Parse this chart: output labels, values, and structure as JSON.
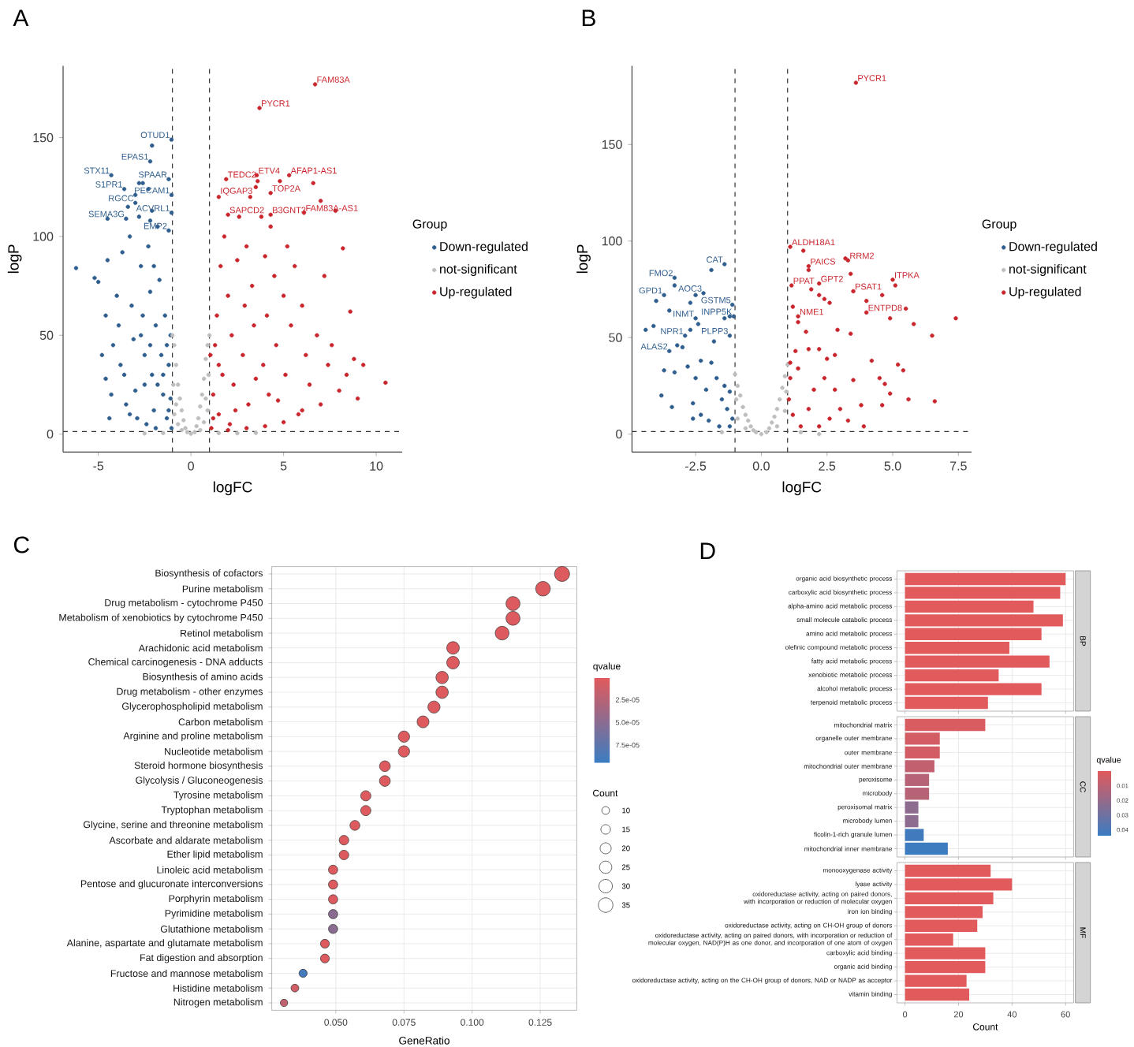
{
  "chart_data": [
    {
      "type": "scatter",
      "title": "A",
      "xlabel": "logFC",
      "ylabel": "logP",
      "legend_title": "Group",
      "legend": "right",
      "xlim": [
        -6.9,
        11.4
      ],
      "ylim": [
        -9.1,
        186.4
      ],
      "xticks": [
        -5,
        0,
        5,
        10
      ],
      "yticks": [
        0,
        50,
        100,
        150
      ],
      "ref_lines": [
        {
          "axis": "x",
          "value": -1,
          "line_style": "dashed"
        },
        {
          "axis": "x",
          "value": 1,
          "line_style": "dashed"
        },
        {
          "axis": "y",
          "value": 1.3,
          "line_style": "dashed"
        }
      ],
      "annotations": [
        {
          "text": "FAM83A",
          "x": 6.7,
          "y": 177
        },
        {
          "text": "PYCR1",
          "x": 3.7,
          "y": 165
        },
        {
          "text": "OTUD1",
          "x": -1.05,
          "y": 149
        },
        {
          "text": "EPAS1",
          "x": -2.2,
          "y": 138
        },
        {
          "text": "STX11",
          "x": -4.3,
          "y": 131
        },
        {
          "text": "SPAAR",
          "x": -1.2,
          "y": 129
        },
        {
          "text": "S1PR1",
          "x": -3.6,
          "y": 124
        },
        {
          "text": "PECAM1",
          "x": -1.05,
          "y": 121
        },
        {
          "text": "RGCC",
          "x": -3.0,
          "y": 117
        },
        {
          "text": "ACVRL1",
          "x": -1.05,
          "y": 112
        },
        {
          "text": "SEMA3G",
          "x": -3.5,
          "y": 109
        },
        {
          "text": "EMP2",
          "x": -1.2,
          "y": 103
        },
        {
          "text": "TEDC2",
          "x": 1.9,
          "y": 129
        },
        {
          "text": "ETV4",
          "x": 3.55,
          "y": 131
        },
        {
          "text": "AFAP1-AS1",
          "x": 5.3,
          "y": 131
        },
        {
          "text": "IQGAP3",
          "x": 1.5,
          "y": 120
        },
        {
          "text": "TOP2A",
          "x": 4.3,
          "y": 122
        },
        {
          "text": "SAPCD2",
          "x": 2.0,
          "y": 111
        },
        {
          "text": "B3GNT3",
          "x": 4.3,
          "y": 111
        },
        {
          "text": "FAM83A-AS1",
          "x": 6.1,
          "y": 112
        }
      ],
      "series": [
        {
          "name": "Down-regulated",
          "color": "#2F5E8E",
          "x": [
            -6.2,
            -5.2,
            -5.0,
            -4.5,
            -4.6,
            -4.8,
            -4.6,
            -4.4,
            -4.2,
            -4.0,
            -3.9,
            -3.7,
            -3.6,
            -3.5,
            -3.3,
            -3.2,
            -3.1,
            -3.0,
            -2.9,
            -2.8,
            -2.7,
            -2.6,
            -2.5,
            -2.4,
            -2.3,
            -2.2,
            -2.1,
            -2.0,
            -2.0,
            -1.9,
            -1.8,
            -1.7,
            -1.6,
            -1.5,
            -1.4,
            -1.3,
            -1.2,
            -1.1,
            -1.05,
            -1.1,
            -2.6,
            -2.3,
            -2.1,
            -2.8,
            -3.0,
            -3.4,
            -4.5,
            -2.1,
            -2.2,
            -1.5,
            -1.8,
            -2.5,
            -3.3,
            -3.8,
            -2.7,
            -1.3,
            -1.2,
            -1.9,
            -2.2,
            -4.3,
            -1.05,
            -2.2,
            -4.3,
            -1.2,
            -3.6,
            -1.05,
            -3.0,
            -1.05,
            -3.5,
            -1.2
          ],
          "values": [
            84,
            79,
            77,
            88,
            60,
            40,
            28,
            8,
            45,
            70,
            55,
            92,
            30,
            15,
            100,
            65,
            48,
            22,
            8,
            110,
            85,
            60,
            40,
            5,
            95,
            72,
            30,
            85,
            12,
            55,
            105,
            78,
            40,
            20,
            60,
            8,
            35,
            50,
            3,
            18,
            127,
            124,
            146,
            127,
            121,
            115,
            109,
            113,
            108,
            30,
            25,
            25,
            10,
            35,
            50,
            45,
            12,
            3,
            45,
            20,
            149,
            138,
            131,
            129,
            124,
            121,
            117,
            112,
            109,
            103
          ]
        },
        {
          "name": "not-significant",
          "color": "#BEBEBE",
          "x": [
            -1.0,
            -0.9,
            -0.8,
            -0.7,
            -0.6,
            -0.5,
            -0.4,
            -0.3,
            -0.2,
            0,
            0.2,
            0.3,
            0.4,
            0.5,
            0.6,
            0.7,
            0.8,
            0.9,
            1.0,
            -0.9,
            -0.7,
            -0.5,
            0.5,
            0.7,
            0.9,
            -1.5,
            -2.5,
            1.5,
            2.5,
            3.5,
            -0.95,
            0.95,
            -0.8,
            0.8
          ],
          "values": [
            50,
            45,
            35,
            25,
            18,
            12,
            7,
            3,
            1,
            0.2,
            1,
            4,
            8,
            14,
            20,
            28,
            38,
            45,
            50,
            10,
            5,
            2,
            2,
            6,
            12,
            0.5,
            0.3,
            0.5,
            0.4,
            0.6,
            25,
            30,
            15,
            18
          ]
        },
        {
          "name": "Up-regulated",
          "color": "#C9252C",
          "x": [
            1.1,
            1.2,
            1.3,
            1.4,
            1.5,
            1.6,
            1.7,
            1.8,
            2.0,
            2.1,
            2.2,
            2.3,
            2.5,
            2.6,
            2.8,
            2.9,
            3.0,
            3.1,
            3.2,
            3.3,
            3.4,
            3.5,
            3.6,
            3.7,
            3.8,
            3.9,
            4.0,
            4.1,
            4.2,
            4.3,
            4.5,
            4.6,
            4.8,
            5.0,
            5.1,
            5.2,
            5.4,
            5.6,
            5.8,
            6.0,
            6.2,
            6.4,
            6.6,
            6.7,
            6.8,
            7.0,
            7.2,
            7.4,
            7.6,
            7.8,
            8.0,
            8.2,
            8.4,
            8.6,
            8.8,
            9.0,
            9.3,
            10.5,
            1.05,
            1.2,
            2.0,
            3.0,
            4.0,
            5.0,
            6.0,
            7.0,
            2.4,
            1.5,
            3.5,
            4.7,
            1.9,
            3.55,
            5.3,
            1.5,
            4.3,
            2.0,
            4.3,
            6.1
          ],
          "values": [
            3,
            20,
            45,
            60,
            10,
            85,
            30,
            100,
            70,
            5,
            50,
            25,
            88,
            110,
            40,
            65,
            95,
            15,
            120,
            75,
            55,
            125,
            128,
            165,
            110,
            35,
            90,
            60,
            20,
            105,
            80,
            45,
            128,
            70,
            30,
            95,
            55,
            85,
            10,
            65,
            40,
            25,
            127,
            177,
            50,
            118,
            80,
            35,
            45,
            113,
            22,
            94,
            30,
            62,
            38,
            18,
            35,
            26,
            40,
            8,
            2,
            3,
            4,
            6,
            12,
            15,
            12,
            35,
            28,
            17,
            129,
            131,
            131,
            120,
            122,
            111,
            111,
            112
          ]
        }
      ]
    },
    {
      "type": "scatter",
      "title": "B",
      "xlabel": "logFC",
      "ylabel": "logP",
      "legend_title": "Group",
      "legend": "right",
      "xlim": [
        -4.92,
        8.0
      ],
      "ylim": [
        -9.3,
        190.8
      ],
      "xticks": [
        {
          "value": -2.5,
          "label": "-2.5"
        },
        {
          "value": 0,
          "label": "0.0"
        },
        {
          "value": 2.5,
          "label": "2.5"
        },
        {
          "value": 5,
          "label": "5.0"
        },
        {
          "value": 7.5,
          "label": "7.5"
        }
      ],
      "yticks": [
        0,
        50,
        100,
        150
      ],
      "ref_lines": [
        {
          "axis": "x",
          "value": -1,
          "line_style": "dashed"
        },
        {
          "axis": "x",
          "value": 1,
          "line_style": "dashed"
        },
        {
          "axis": "y",
          "value": 1.3,
          "line_style": "dashed"
        }
      ],
      "annotations": [
        {
          "text": "PYCR1",
          "x": 3.6,
          "y": 182
        },
        {
          "text": "ALDH18A1",
          "x": 1.1,
          "y": 97
        },
        {
          "text": "PAICS",
          "x": 1.8,
          "y": 87
        },
        {
          "text": "RRM2",
          "x": 3.3,
          "y": 90
        },
        {
          "text": "GPT2",
          "x": 2.2,
          "y": 78
        },
        {
          "text": "ITPKA",
          "x": 5.0,
          "y": 80
        },
        {
          "text": "PPAT",
          "x": 1.15,
          "y": 77
        },
        {
          "text": "PSAT1",
          "x": 3.5,
          "y": 74
        },
        {
          "text": "NME1",
          "x": 1.4,
          "y": 61
        },
        {
          "text": "ENTPD8",
          "x": 4.0,
          "y": 63
        },
        {
          "text": "CAT",
          "x": -1.4,
          "y": 88
        },
        {
          "text": "FMO2",
          "x": -3.3,
          "y": 81
        },
        {
          "text": "GPD1",
          "x": -3.7,
          "y": 72
        },
        {
          "text": "AOC3",
          "x": -2.2,
          "y": 73
        },
        {
          "text": "INMT",
          "x": -2.5,
          "y": 60
        },
        {
          "text": "GSTM5",
          "x": -1.1,
          "y": 67
        },
        {
          "text": "INPP5K",
          "x": -1.05,
          "y": 61
        },
        {
          "text": "NPR1",
          "x": -2.9,
          "y": 51
        },
        {
          "text": "PLPP3",
          "x": -1.2,
          "y": 51
        },
        {
          "text": "ALAS2",
          "x": -3.5,
          "y": 43
        }
      ],
      "series": [
        {
          "name": "Down-regulated",
          "color": "#2F5E8E",
          "x": [
            -4.4,
            -4.1,
            -4.0,
            -3.5,
            -3.3,
            -2.7,
            -1.9,
            -2.5,
            -2.7,
            -2.4,
            -1.4,
            -1.2,
            -1.05,
            -1.8,
            -3.2,
            -3.7,
            -3.3,
            -3.8,
            -3.4,
            -2.6,
            -2.5,
            -2.8,
            -1.9,
            -2.1,
            -1.7,
            -1.4,
            -1.2,
            -1.5,
            -1.3,
            -1.1,
            -2.3,
            -2.0,
            -2.6,
            -1.6,
            -1.2,
            -3.0,
            -2.3,
            -1.4,
            -3.3,
            -3.7,
            -2.2,
            -2.5,
            -1.1,
            -2.9,
            -1.2,
            -3.5
          ],
          "values": [
            54,
            56,
            69,
            64,
            77,
            68,
            85,
            72,
            54,
            57,
            60,
            61,
            61,
            48,
            46,
            33,
            32,
            20,
            14,
            16,
            29,
            35,
            37,
            23,
            29,
            25,
            22,
            18,
            13,
            8,
            10,
            7,
            8,
            4,
            4,
            45,
            38,
            88,
            81,
            72,
            73,
            60,
            67,
            51,
            51,
            43
          ]
        },
        {
          "name": "not-significant",
          "color": "#BEBEBE",
          "x": [
            -1,
            -0.9,
            -0.8,
            -0.7,
            -0.6,
            -0.5,
            -0.4,
            -0.3,
            -0.2,
            0,
            0.2,
            0.3,
            0.4,
            0.5,
            0.6,
            0.7,
            0.8,
            0.9,
            1.0,
            -0.9,
            -0.6,
            0.6,
            0.9,
            -1.5,
            1.5,
            2.2,
            -0.95,
            0.95
          ],
          "values": [
            31,
            25,
            20,
            14,
            10,
            7,
            4,
            2,
            1,
            0,
            1,
            3,
            6,
            9,
            13,
            18,
            24,
            30,
            36,
            8,
            3,
            4,
            12,
            1,
            1,
            0,
            18,
            22
          ]
        },
        {
          "name": "Up-regulated",
          "color": "#C9252C",
          "x": [
            3.6,
            1.6,
            1.8,
            3.2,
            3.4,
            5.1,
            4.6,
            5.5,
            4.0,
            4.9,
            7.4,
            5.8,
            6.5,
            1.9,
            2.2,
            2.4,
            2.6,
            1.2,
            1.4,
            1.7,
            2.9,
            3.4,
            1.8,
            2.2,
            2.8,
            2.5,
            4.2,
            5.2,
            5.4,
            3.5,
            4.5,
            4.7,
            4.9,
            5.6,
            6.6,
            4.6,
            3.8,
            3.3,
            3.9,
            3.0,
            2.6,
            2.0,
            1.4,
            1.1,
            1.05,
            1.2,
            1.5,
            1.8,
            2.2,
            2.8,
            2.4,
            1.3,
            1.1,
            1.1,
            1.8,
            3.3,
            2.2,
            5.0,
            1.15,
            3.5,
            1.4,
            4.0
          ],
          "values": [
            182,
            95,
            85,
            91,
            83,
            77,
            72,
            65,
            69,
            60,
            60,
            57,
            51,
            75,
            72,
            70,
            68,
            66,
            58,
            53,
            54,
            52,
            44,
            44,
            41,
            39,
            38,
            36,
            33,
            28,
            29,
            26,
            21,
            18,
            17,
            15,
            15,
            7,
            4,
            13,
            8,
            23,
            34,
            29,
            18,
            10,
            4,
            13,
            4,
            23,
            29,
            43,
            37,
            97,
            87,
            90,
            78,
            80,
            77,
            74,
            61,
            63
          ]
        }
      ]
    },
    {
      "type": "scatter",
      "title": "C",
      "orientation": "horizontal",
      "grid": true,
      "xlabel": "GeneRatio",
      "clabel": "qvalue",
      "legend_title": "Count",
      "categories": [
        "Biosynthesis of cofactors",
        "Purine metabolism",
        "Drug metabolism - cytochrome P450",
        "Metabolism of xenobiotics by cytochrome P450",
        "Retinol metabolism",
        "Arachidonic acid metabolism",
        "Chemical carcinogenesis - DNA adducts",
        "Biosynthesis of amino acids",
        "Drug metabolism - other enzymes",
        "Glycerophospholipid metabolism",
        "Carbon metabolism",
        "Arginine and proline metabolism",
        "Nucleotide metabolism",
        "Steroid hormone biosynthesis",
        "Glycolysis / Gluconeogenesis",
        "Tyrosine metabolism",
        "Tryptophan metabolism",
        "Glycine, serine and threonine metabolism",
        "Ascorbate and aldarate metabolism",
        "Ether lipid metabolism",
        "Linoleic acid metabolism",
        "Pentose and glucuronate interconversions",
        "Porphyrin metabolism",
        "Pyrimidine metabolism",
        "Glutathione metabolism",
        "Alanine, aspartate and glutamate metabolism",
        "Fat digestion and absorption",
        "Fructose and mannose metabolism",
        "Histidine metabolism",
        "Nitrogen metabolism"
      ],
      "values": [
        0.133,
        0.126,
        0.115,
        0.115,
        0.111,
        0.093,
        0.093,
        0.089,
        0.089,
        0.086,
        0.082,
        0.075,
        0.075,
        0.068,
        0.068,
        0.061,
        0.061,
        0.057,
        0.053,
        0.053,
        0.049,
        0.049,
        0.049,
        0.049,
        0.049,
        0.046,
        0.046,
        0.038,
        0.035,
        0.031
      ],
      "sizes": [
        37,
        35,
        32,
        32,
        31,
        26,
        26,
        25,
        25,
        24,
        23,
        21,
        21,
        19,
        19,
        17,
        17,
        16,
        15,
        15,
        14,
        14,
        14,
        14,
        14,
        13,
        13,
        11,
        10,
        9
      ],
      "size_legend": [
        10,
        15,
        20,
        25,
        30,
        35
      ],
      "cvalues": [
        3e-06,
        3e-06,
        3e-06,
        3e-06,
        3e-06,
        3e-06,
        3e-06,
        3e-06,
        3e-06,
        3e-06,
        3e-06,
        3e-06,
        3e-06,
        3e-06,
        3e-06,
        3e-06,
        3e-06,
        3e-06,
        3e-06,
        3e-06,
        3e-06,
        3e-06,
        3e-06,
        5e-05,
        5e-05,
        3e-06,
        3e-06,
        9e-05,
        1e-05,
        2e-05
      ],
      "clim": [
        1e-06,
        9.5e-05
      ],
      "cticks": [
        {
          "value": 2.5e-05,
          "label": "2.5e-05"
        },
        {
          "value": 5e-05,
          "label": "5.0e-05"
        },
        {
          "value": 7.5e-05,
          "label": "7.5e-05"
        }
      ],
      "xlim": [
        0.0265,
        0.1384
      ],
      "xticks": [
        {
          "value": 0.05,
          "label": "0.050"
        },
        {
          "value": 0.075,
          "label": "0.075"
        },
        {
          "value": 0.1,
          "label": "0.100"
        },
        {
          "value": 0.125,
          "label": "0.125"
        }
      ]
    },
    {
      "type": "bar",
      "orientation": "horizontal",
      "title": "D",
      "annotations": [
        "BP"
      ],
      "grid": true,
      "tick_labels": "y",
      "color": "#E15A5C",
      "categories": [
        "organic acid biosynthetic process",
        "carboxylic acid biosynthetic process",
        "alpha-amino acid metabolic process",
        "small molecule catabolic process",
        "amino acid metabolic process",
        "olefinic compound metabolic process",
        "fatty acid metabolic process",
        "xenobiotic metabolic process",
        "alcohol metabolic process",
        "terpenoid metabolic process"
      ],
      "values": [
        60,
        58,
        48,
        59,
        51,
        39,
        54,
        35,
        51,
        31
      ],
      "xlim": [
        -3,
        63
      ],
      "xticks": [
        0,
        20,
        40,
        60
      ]
    },
    {
      "type": "bar",
      "orientation": "horizontal",
      "annotations": [
        "CC"
      ],
      "grid": true,
      "tick_labels": "y",
      "clabel": "qvalue",
      "categories": [
        "mitochondrial matrix",
        "organelle outer membrane",
        "outer membrane",
        "mitochondrial outer membrane",
        "peroxisome",
        "microbody",
        "peroxisomal matrix",
        "microbody lumen",
        "ficolin-1-rich granule lumen",
        "mitochondrial inner membrane"
      ],
      "values": [
        30,
        13,
        13,
        11,
        9,
        9,
        5,
        5,
        7,
        16
      ],
      "cvalues": [
        0.002,
        0.004,
        0.004,
        0.008,
        0.011,
        0.011,
        0.022,
        0.022,
        0.042,
        0.043
      ],
      "clim": [
        0,
        0.044
      ],
      "cticks": [
        0.01,
        0.02,
        0.03,
        0.04
      ],
      "xlim": [
        -3,
        63
      ],
      "xticks": [
        0,
        20,
        40,
        60
      ]
    },
    {
      "type": "bar",
      "orientation": "horizontal",
      "annotations": [
        "MF"
      ],
      "grid": true,
      "xlabel": "Count",
      "color": "#E15A5C",
      "categories": [
        "monooxygenase activity",
        "lyase activity",
        "oxidoreductase activity, acting on paired donors, with incorporation or reduction of molecular oxygen",
        "iron ion binding",
        "oxidoreductase activity, acting on CH-OH group of donors",
        "oxidoreductase activity, acting on paired donors, with incorporation or reduction of molecular oxygen, NAD(P)H as one donor, and incorporation of one atom of oxygen",
        "carboxylic acid binding",
        "organic acid binding",
        "oxidoreductase activity, acting on the CH-OH group of donors, NAD or NADP as acceptor",
        "vitamin binding"
      ],
      "values": [
        32,
        40,
        33,
        29,
        27,
        18,
        30,
        30,
        23,
        24
      ],
      "xlim": [
        -3,
        63
      ],
      "xticks": [
        0,
        20,
        40,
        60
      ]
    }
  ]
}
